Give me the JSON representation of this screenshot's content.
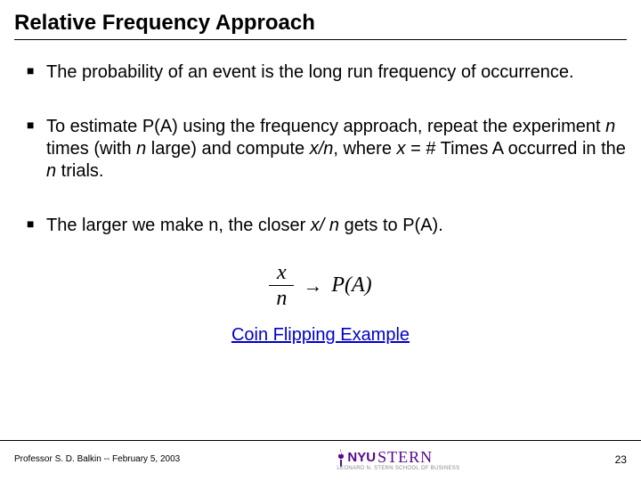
{
  "slide": {
    "title": "Relative Frequency Approach",
    "bullets": [
      {
        "text": "The probability of an event is the long run frequency of occurrence."
      },
      {
        "html": "To estimate P(A) using the frequency approach, repeat the experiment <span class=\"it\">n</span> times (with <span class=\"it\">n</span> large) and compute <span class=\"it\">x/n</span>, where <span class=\"it\">x</span> = # Times A occurred in the <span class=\"it\">n</span> trials."
      },
      {
        "html": "The larger we make n, the closer <span class=\"it\">x/ n</span> gets to P(A)."
      }
    ],
    "formula": {
      "numerator": "x",
      "denominator": "n",
      "arrow": "→",
      "rhs": "P(A)"
    },
    "link_text": "Coin Flipping Example"
  },
  "footer": {
    "left": "Professor S. D. Balkin -- February 5, 2003",
    "logo": {
      "nyu": "NYU",
      "stern": "STERN",
      "sub": "LEONARD N. STERN SCHOOL OF BUSINESS"
    },
    "page": "23"
  },
  "colors": {
    "nyu_purple": "#57068c",
    "link": "#0000cc",
    "text": "#000000",
    "bg": "#ffffff"
  }
}
